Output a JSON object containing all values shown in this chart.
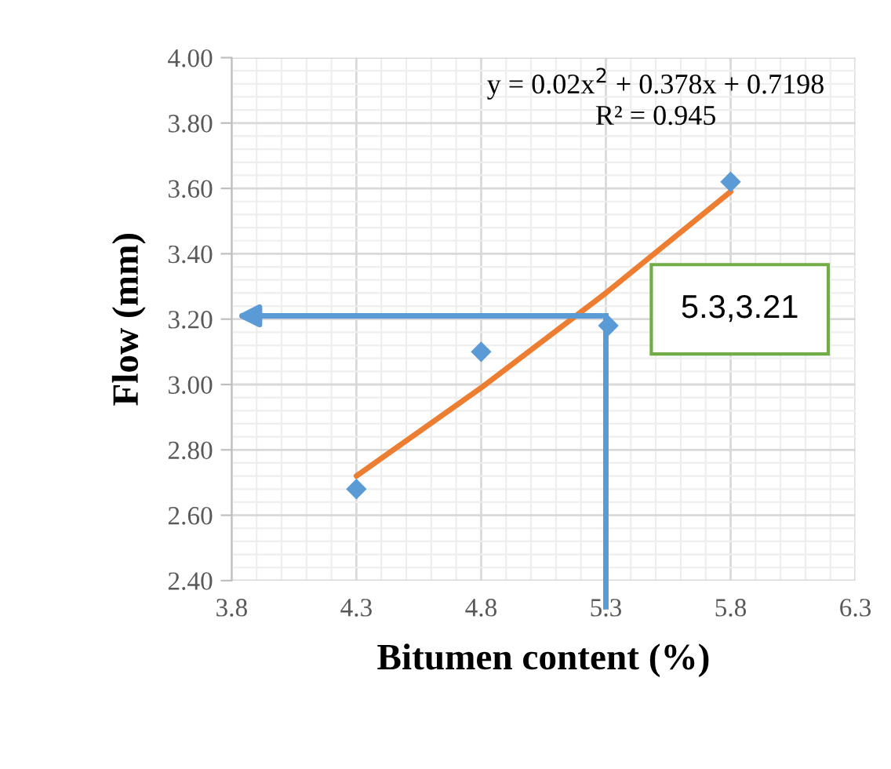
{
  "chart_data": {
    "type": "scatter",
    "xlabel": "Bitumen content (%)",
    "ylabel": "Flow (mm)",
    "x": [
      4.3,
      4.8,
      5.31,
      5.8
    ],
    "series": [
      {
        "color": "#5b9bd5",
        "marker": "diamond",
        "values": [
          2.68,
          3.1,
          3.18,
          3.62
        ]
      },
      {
        "type": "line",
        "color": "#ed7d31",
        "marker": "none",
        "x": [
          4.3,
          4.8,
          5.3,
          5.8
        ],
        "values": [
          2.72,
          2.99,
          3.28,
          3.59
        ]
      }
    ],
    "xlim": [
      3.8,
      6.3
    ],
    "xticks": [
      3.8,
      4.3,
      4.8,
      5.3,
      5.8,
      6.3
    ],
    "ylim": [
      2.4,
      4.0
    ],
    "yticks": [
      {
        "value": 2.4,
        "label": "2.40"
      },
      {
        "value": 2.6,
        "label": "2.60"
      },
      {
        "value": 2.8,
        "label": "2.80"
      },
      {
        "value": 3.0,
        "label": "3.00"
      },
      {
        "value": 3.2,
        "label": "3.20"
      },
      {
        "value": 3.4,
        "label": "3.40"
      },
      {
        "value": 3.6,
        "label": "3.60"
      },
      {
        "value": 3.8,
        "label": "3.80"
      },
      {
        "value": 4.0,
        "label": "4.00"
      }
    ],
    "grid": true,
    "annotations": [
      "y = 0.02x$^{2}$ + 0.378x + 0.7198",
      "R² = 0.945",
      {
        "text": "5.3,3.21",
        "x": 5.3,
        "y": 3.21
      }
    ]
  }
}
